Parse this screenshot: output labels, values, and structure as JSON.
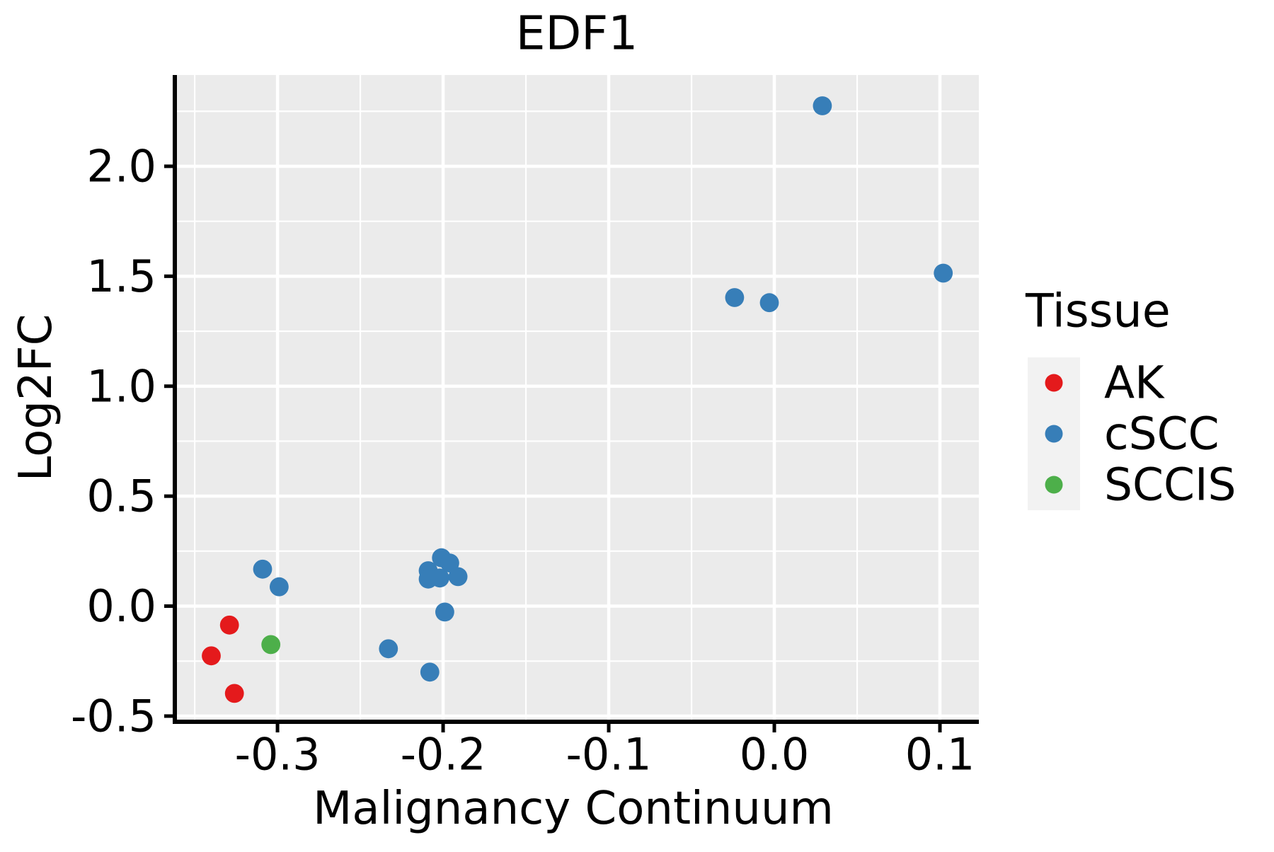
{
  "chart_data": {
    "type": "scatter",
    "title": "EDF1",
    "xlabel": "Malignancy Continuum",
    "ylabel": "Log2FC",
    "xlim": [
      -0.362,
      0.1235
    ],
    "ylim": [
      -0.526,
      2.415
    ],
    "x_major_ticks": [
      -0.3,
      -0.2,
      -0.1,
      0.0,
      0.1
    ],
    "x_tick_labels": [
      "-0.3",
      "-0.2",
      "-0.1",
      "0.0",
      "0.1"
    ],
    "y_major_ticks": [
      -0.5,
      0.0,
      0.5,
      1.0,
      1.5,
      2.0
    ],
    "y_tick_labels": [
      "-0.5",
      "0.0",
      "0.5",
      "1.0",
      "1.5",
      "2.0"
    ],
    "x_minor_ticks": [
      -0.35,
      -0.25,
      -0.15,
      -0.05,
      0.05
    ],
    "y_minor_ticks": [
      -0.25,
      0.25,
      0.75,
      1.25,
      1.75,
      2.25
    ],
    "grid": "on",
    "legend": {
      "title": "Tissue",
      "position": "right",
      "entries": [
        {
          "label": "AK",
          "color": "#E41A1C"
        },
        {
          "label": "cSCC",
          "color": "#377EB8"
        },
        {
          "label": "SCCIS",
          "color": "#4DAF4A"
        }
      ]
    },
    "series": [
      {
        "name": "AK",
        "color": "#E41A1C",
        "points": [
          [
            -0.329,
            -0.086
          ],
          [
            -0.34,
            -0.226
          ],
          [
            -0.326,
            -0.397
          ]
        ]
      },
      {
        "name": "cSCC",
        "color": "#377EB8",
        "points": [
          [
            -0.309,
            0.168
          ],
          [
            -0.299,
            0.088
          ],
          [
            -0.233,
            -0.194
          ],
          [
            -0.209,
            0.161
          ],
          [
            -0.209,
            0.123
          ],
          [
            -0.208,
            -0.3
          ],
          [
            -0.202,
            0.128
          ],
          [
            -0.201,
            0.22
          ],
          [
            -0.199,
            -0.027
          ],
          [
            -0.196,
            0.196
          ],
          [
            -0.191,
            0.134
          ],
          [
            -0.024,
            1.403
          ],
          [
            -0.003,
            1.38
          ],
          [
            0.029,
            2.275
          ],
          [
            0.102,
            1.514
          ]
        ]
      },
      {
        "name": "SCCIS",
        "color": "#4DAF4A",
        "points": [
          [
            -0.304,
            -0.175
          ]
        ]
      }
    ],
    "style": {
      "panel_bg": "#EBEBEB",
      "grid_color": "#FFFFFF",
      "legend_key_bg": "#F2F2F2",
      "axis_color": "#000000",
      "text_color": "#000000"
    }
  }
}
